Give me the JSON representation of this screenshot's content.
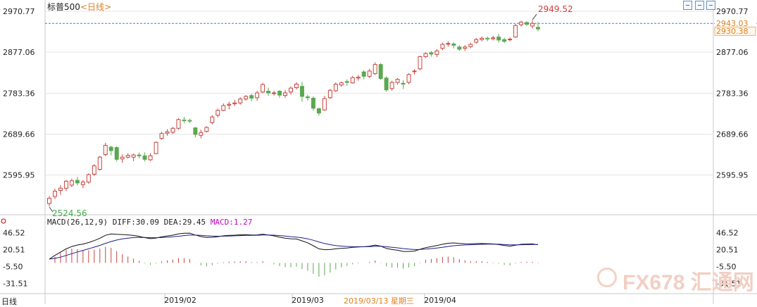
{
  "header": {
    "symbol": "标普500",
    "timeframe": "<日线>"
  },
  "toolbar": {
    "icons": [
      "panel-left-icon",
      "panel-right-icon",
      "close-panel-icon"
    ]
  },
  "chart_data": {
    "type": "candlestick",
    "title": "标普500",
    "price_axis": {
      "ticks": [
        "2970.77",
        "2877.06",
        "2783.36",
        "2689.66",
        "2595.95"
      ],
      "range": [
        2524.56,
        2970.77
      ]
    },
    "annotations": {
      "high_label": "2949.52",
      "low_label": "2524.56",
      "reference_line": 2943.03,
      "reference_label": "2943.03",
      "last_price_label": "2930.38"
    },
    "x_axis_labels": [
      "2019/02",
      "2019/03",
      "2019/04"
    ],
    "cursor_date": "2019/03/13  星期三",
    "candles": [
      [
        2531,
        2543,
        2524.56,
        2548
      ],
      [
        2547,
        2559,
        2541,
        2565
      ],
      [
        2561,
        2566,
        2551,
        2573
      ],
      [
        2566,
        2582,
        2560,
        2585
      ],
      [
        2573,
        2583,
        2568,
        2588
      ],
      [
        2584,
        2578,
        2572,
        2592
      ],
      [
        2574,
        2580,
        2566,
        2585
      ],
      [
        2580,
        2597,
        2576,
        2600
      ],
      [
        2598,
        2617,
        2594,
        2621
      ],
      [
        2609,
        2637,
        2606,
        2640
      ],
      [
        2643,
        2664,
        2639,
        2670
      ],
      [
        2660,
        2652,
        2641,
        2663
      ],
      [
        2659,
        2632,
        2627,
        2662
      ],
      [
        2633,
        2637,
        2624,
        2643
      ],
      [
        2637,
        2641,
        2634,
        2646
      ],
      [
        2637,
        2642,
        2628,
        2645
      ],
      [
        2642,
        2640,
        2634,
        2648
      ],
      [
        2640,
        2632,
        2627,
        2648
      ],
      [
        2631,
        2640,
        2628,
        2646
      ],
      [
        2645,
        2671,
        2644,
        2673
      ],
      [
        2680,
        2691,
        2677,
        2695
      ],
      [
        2692,
        2695,
        2686,
        2701
      ],
      [
        2694,
        2703,
        2690,
        2706
      ],
      [
        2703,
        2723,
        2700,
        2726
      ],
      [
        2722,
        2721,
        2715,
        2729
      ],
      [
        2721,
        2720,
        2715,
        2725
      ],
      [
        2704,
        2689,
        2682,
        2706
      ],
      [
        2687,
        2693,
        2680,
        2700
      ],
      [
        2696,
        2705,
        2693,
        2708
      ],
      [
        2716,
        2729,
        2712,
        2733
      ],
      [
        2733,
        2744,
        2728,
        2748
      ],
      [
        2744,
        2755,
        2742,
        2760
      ],
      [
        2756,
        2758,
        2746,
        2764
      ],
      [
        2759,
        2761,
        2754,
        2768
      ],
      [
        2761,
        2770,
        2757,
        2774
      ],
      [
        2770,
        2776,
        2766,
        2779
      ],
      [
        2778,
        2772,
        2765,
        2782
      ],
      [
        2773,
        2784,
        2766,
        2789
      ],
      [
        2786,
        2803,
        2783,
        2807
      ],
      [
        2788,
        2784,
        2777,
        2796
      ],
      [
        2784,
        2784,
        2778,
        2789
      ],
      [
        2788,
        2779,
        2773,
        2790
      ],
      [
        2778,
        2784,
        2773,
        2791
      ],
      [
        2786,
        2795,
        2780,
        2799
      ],
      [
        2796,
        2804,
        2792,
        2808
      ],
      [
        2799,
        2776,
        2764,
        2809
      ],
      [
        2775,
        2773,
        2766,
        2780
      ],
      [
        2772,
        2749,
        2743,
        2776
      ],
      [
        2748,
        2738,
        2732,
        2750
      ],
      [
        2745,
        2771,
        2743,
        2777
      ],
      [
        2773,
        2790,
        2770,
        2793
      ],
      [
        2789,
        2804,
        2786,
        2808
      ],
      [
        2802,
        2807,
        2798,
        2810
      ],
      [
        2810,
        2808,
        2800,
        2815
      ],
      [
        2807,
        2819,
        2805,
        2823
      ],
      [
        2818,
        2820,
        2812,
        2825
      ],
      [
        2832,
        2822,
        2815,
        2836
      ],
      [
        2822,
        2834,
        2818,
        2839
      ],
      [
        2828,
        2849,
        2825,
        2854
      ],
      [
        2849,
        2817,
        2814,
        2852
      ],
      [
        2818,
        2791,
        2787,
        2822
      ],
      [
        2794,
        2808,
        2789,
        2812
      ],
      [
        2808,
        2815,
        2803,
        2818
      ],
      [
        2806,
        2804,
        2793,
        2813
      ],
      [
        2808,
        2826,
        2804,
        2829
      ],
      [
        2833,
        2834,
        2826,
        2838
      ],
      [
        2839,
        2867,
        2836,
        2869
      ],
      [
        2867,
        2874,
        2864,
        2877
      ],
      [
        2876,
        2873,
        2867,
        2880
      ],
      [
        2872,
        2880,
        2866,
        2884
      ],
      [
        2886,
        2895,
        2882,
        2899
      ],
      [
        2896,
        2897,
        2890,
        2902
      ],
      [
        2896,
        2893,
        2886,
        2900
      ],
      [
        2889,
        2884,
        2880,
        2893
      ],
      [
        2886,
        2889,
        2880,
        2893
      ],
      [
        2890,
        2895,
        2886,
        2899
      ],
      [
        2900,
        2906,
        2896,
        2910
      ],
      [
        2906,
        2909,
        2902,
        2913
      ],
      [
        2909,
        2908,
        2902,
        2913
      ],
      [
        2908,
        2910,
        2904,
        2915
      ],
      [
        2912,
        2905,
        2899,
        2919
      ],
      [
        2906,
        2902,
        2898,
        2910
      ],
      [
        2906,
        2907,
        2902,
        2911
      ],
      [
        2912,
        2938,
        2910,
        2942
      ],
      [
        2940,
        2946,
        2936,
        2949
      ],
      [
        2945,
        2941,
        2937,
        2948
      ],
      [
        2937,
        2943,
        2931,
        2949.52
      ],
      [
        2934,
        2930.38,
        2925,
        2946
      ]
    ],
    "macd": {
      "label": "MACD(26,12,9)",
      "diff_label": "DIFF:30.09",
      "dea_label": "DEA:29.45",
      "macd_label": "MACD:1.27",
      "ticks": [
        "46.52",
        "20.51",
        "-5.50",
        "-31.51"
      ],
      "range": [
        -44,
        60
      ]
    }
  },
  "watermark": {
    "text": "FX678 汇通网"
  },
  "footer": {
    "left_label": "日线"
  },
  "colors": {
    "up": "#c8443e",
    "down": "#5aa84f",
    "grid": "#e4e4e4",
    "axis": "#c9c9c9",
    "reference": "#3f7fd6",
    "high_label": "#d93b3b",
    "low_label": "#3fae4a",
    "diff_line": "#111111",
    "dea_line": "#1e1e8a"
  }
}
